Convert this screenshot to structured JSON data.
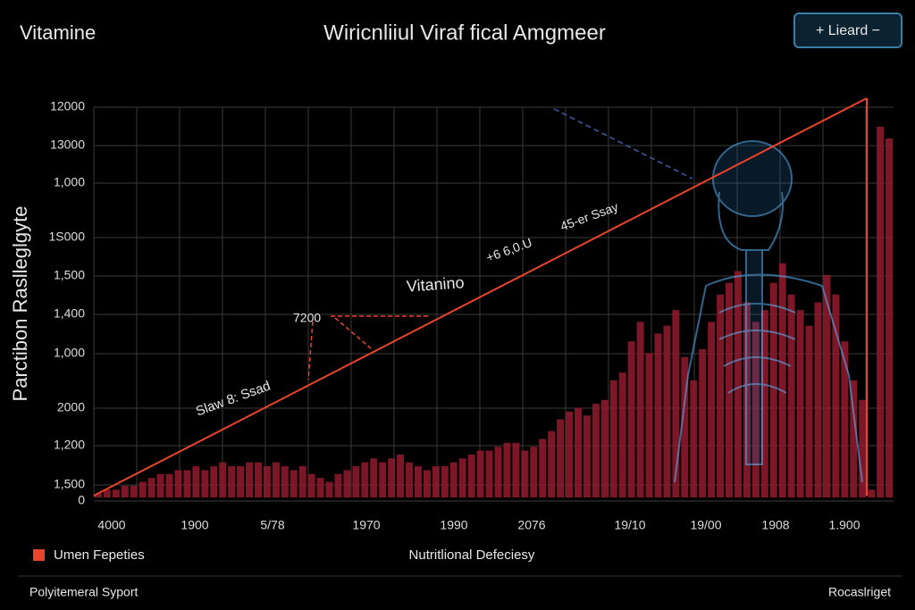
{
  "header": {
    "left": "Vitamine",
    "title": "Wiricnliiul Viraf fical Amgmeer",
    "button": "+ Lieard −"
  },
  "chart_data": {
    "type": "bar",
    "y_axis_label": "Parctibon Raslleglgyte",
    "x_axis_label": "Nutritlional Defeciesy",
    "y_tick_labels": [
      "12000",
      "13000",
      "1,000",
      "1S000",
      "1,500",
      "1,400",
      "1,000",
      "2000",
      "1,200",
      "1,500",
      "0"
    ],
    "x_tick_labels": [
      "4000",
      "1900",
      "5/78",
      "1970",
      "1990",
      "2076",
      "19/10",
      "19/00",
      "1908",
      "1.900"
    ],
    "ylim": [
      0,
      100
    ],
    "color": "#8b1a2b",
    "values": [
      1,
      2,
      2,
      3,
      3,
      4,
      5,
      6,
      6,
      7,
      7,
      8,
      7,
      8,
      9,
      8,
      8,
      9,
      9,
      8,
      9,
      8,
      7,
      8,
      6,
      5,
      4,
      6,
      7,
      8,
      9,
      10,
      9,
      10,
      11,
      9,
      8,
      7,
      8,
      8,
      9,
      10,
      11,
      12,
      12,
      13,
      14,
      14,
      12,
      13,
      15,
      17,
      20,
      22,
      23,
      21,
      24,
      25,
      30,
      32,
      40,
      45,
      37,
      42,
      44,
      48,
      36,
      30,
      38,
      45,
      52,
      55,
      58,
      50,
      45,
      48,
      55,
      60,
      52,
      48,
      44,
      50,
      57,
      52,
      40,
      30,
      25,
      2,
      95,
      92
    ],
    "annotations": [
      "Vitanino",
      "+6 6,0.U",
      "45-er Ssay",
      "Slaw 8: Ssad",
      "7200"
    ],
    "legend": "Umen Fepeties"
  },
  "footer": {
    "left": "Polyitemeral Syport",
    "right": "Rocaslriget"
  }
}
